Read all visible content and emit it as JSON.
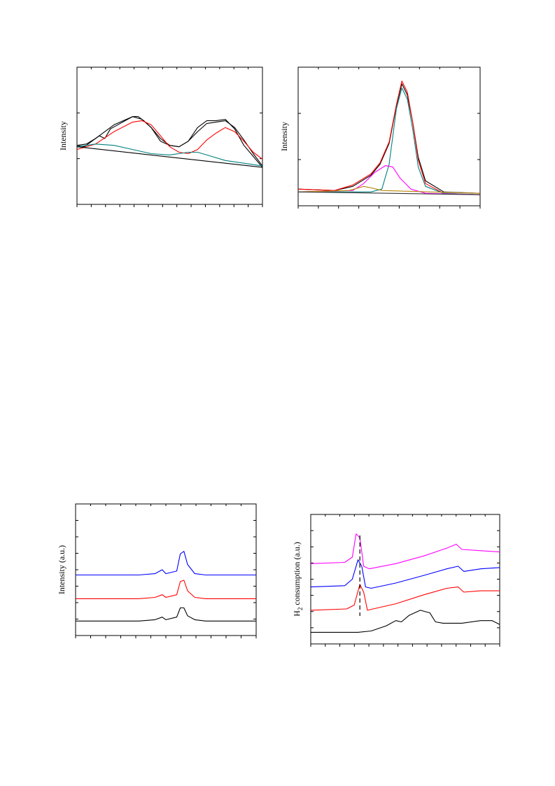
{
  "chart_data": [
    {
      "type": "line",
      "title": "",
      "xlabel": "",
      "ylabel": "Intensity",
      "grid": false,
      "legend": "none",
      "xlim": [
        0,
        100
      ],
      "ylim": [
        0,
        100
      ],
      "series": [
        {
          "color": "#000000",
          "values": [
            [
              0,
              43
            ],
            [
              4,
              42
            ],
            [
              8,
              46
            ],
            [
              12,
              50
            ],
            [
              15,
              48
            ],
            [
              18,
              55
            ],
            [
              22,
              58
            ],
            [
              26,
              61
            ],
            [
              30,
              64
            ],
            [
              33,
              64
            ],
            [
              36,
              61
            ],
            [
              40,
              56
            ],
            [
              45,
              46
            ],
            [
              50,
              43
            ],
            [
              55,
              42
            ],
            [
              60,
              46
            ],
            [
              65,
              56
            ],
            [
              70,
              61
            ],
            [
              75,
              61
            ],
            [
              80,
              62
            ],
            [
              85,
              55
            ],
            [
              90,
              43
            ],
            [
              95,
              35
            ],
            [
              100,
              27
            ]
          ]
        },
        {
          "color": "#000000",
          "values": [
            [
              0,
              43
            ],
            [
              5,
              44
            ],
            [
              10,
              48
            ],
            [
              15,
              53
            ],
            [
              20,
              58
            ],
            [
              25,
              61
            ],
            [
              30,
              64
            ],
            [
              35,
              62
            ],
            [
              40,
              56
            ],
            [
              45,
              48
            ],
            [
              50,
              43
            ],
            [
              55,
              42
            ],
            [
              60,
              46
            ],
            [
              65,
              53
            ],
            [
              70,
              59
            ],
            [
              75,
              60
            ],
            [
              80,
              61
            ],
            [
              85,
              56
            ],
            [
              90,
              47
            ],
            [
              95,
              37
            ],
            [
              100,
              28
            ]
          ]
        },
        {
          "color": "#ff0000",
          "values": [
            [
              0,
              40
            ],
            [
              10,
              44
            ],
            [
              20,
              53
            ],
            [
              30,
              60
            ],
            [
              35,
              61
            ],
            [
              40,
              58
            ],
            [
              45,
              50
            ],
            [
              50,
              42
            ],
            [
              55,
              38
            ],
            [
              60,
              37
            ],
            [
              65,
              40
            ],
            [
              70,
              47
            ],
            [
              75,
              52
            ],
            [
              80,
              56
            ],
            [
              85,
              53
            ],
            [
              90,
              46
            ],
            [
              95,
              38
            ],
            [
              100,
              33
            ]
          ]
        },
        {
          "color": "#008080",
          "values": [
            [
              0,
              42
            ],
            [
              10,
              44
            ],
            [
              20,
              43
            ],
            [
              30,
              40
            ],
            [
              40,
              37
            ],
            [
              50,
              36
            ],
            [
              55,
              37
            ],
            [
              60,
              38
            ],
            [
              65,
              38
            ],
            [
              70,
              36
            ],
            [
              80,
              32
            ],
            [
              90,
              30
            ],
            [
              100,
              28
            ]
          ]
        },
        {
          "color": "#000000",
          "values": [
            [
              0,
              42
            ],
            [
              100,
              27
            ]
          ]
        }
      ]
    },
    {
      "type": "line",
      "title": "",
      "xlabel": "",
      "ylabel": "Intensity",
      "grid": false,
      "legend": "none",
      "xlim": [
        0,
        100
      ],
      "ylim": [
        0,
        100
      ],
      "series": [
        {
          "color": "#000000",
          "values": [
            [
              0,
              12
            ],
            [
              20,
              11
            ],
            [
              30,
              14
            ],
            [
              40,
              22
            ],
            [
              45,
              30
            ],
            [
              50,
              45
            ],
            [
              54,
              72
            ],
            [
              57,
              88
            ],
            [
              60,
              80
            ],
            [
              63,
              60
            ],
            [
              66,
              35
            ],
            [
              70,
              18
            ],
            [
              80,
              10
            ],
            [
              100,
              9
            ]
          ]
        },
        {
          "color": "#ff0000",
          "values": [
            [
              0,
              12
            ],
            [
              20,
              11
            ],
            [
              30,
              15
            ],
            [
              40,
              23
            ],
            [
              45,
              31
            ],
            [
              50,
              46
            ],
            [
              54,
              73
            ],
            [
              57,
              90
            ],
            [
              60,
              82
            ],
            [
              63,
              60
            ],
            [
              66,
              33
            ],
            [
              70,
              16
            ],
            [
              80,
              9
            ],
            [
              100,
              8
            ]
          ]
        },
        {
          "color": "#008080",
          "values": [
            [
              0,
              10
            ],
            [
              40,
              10
            ],
            [
              46,
              12
            ],
            [
              50,
              30
            ],
            [
              54,
              70
            ],
            [
              57,
              85
            ],
            [
              60,
              77
            ],
            [
              63,
              55
            ],
            [
              66,
              28
            ],
            [
              70,
              14
            ],
            [
              80,
              9
            ],
            [
              100,
              8
            ]
          ]
        },
        {
          "color": "#ff00ff",
          "values": [
            [
              0,
              10
            ],
            [
              30,
              11
            ],
            [
              36,
              16
            ],
            [
              42,
              24
            ],
            [
              48,
              29
            ],
            [
              52,
              28
            ],
            [
              56,
              20
            ],
            [
              62,
              12
            ],
            [
              70,
              9
            ],
            [
              100,
              8
            ]
          ]
        },
        {
          "color": "#b8860b",
          "values": [
            [
              0,
              10
            ],
            [
              28,
              11
            ],
            [
              36,
              14
            ],
            [
              40,
              13
            ],
            [
              46,
              11
            ],
            [
              100,
              9
            ]
          ]
        },
        {
          "color": "#333333",
          "values": [
            [
              0,
              10
            ],
            [
              100,
              8
            ]
          ]
        }
      ]
    },
    {
      "type": "line",
      "title": "",
      "xlabel": "",
      "ylabel": "Intensity (a.u.)",
      "grid": false,
      "legend": "none",
      "xlim": [
        0,
        100
      ],
      "ylim": [
        0,
        100
      ],
      "series": [
        {
          "color": "#0000ff",
          "values": [
            [
              0,
              46
            ],
            [
              20,
              46
            ],
            [
              35,
              46
            ],
            [
              44,
              47
            ],
            [
              48,
              50
            ],
            [
              50,
              47
            ],
            [
              56,
              49
            ],
            [
              58,
              62
            ],
            [
              60,
              64
            ],
            [
              62,
              54
            ],
            [
              66,
              47
            ],
            [
              72,
              46
            ],
            [
              100,
              46
            ]
          ]
        },
        {
          "color": "#ff0000",
          "values": [
            [
              0,
              28
            ],
            [
              20,
              28
            ],
            [
              35,
              28
            ],
            [
              44,
              29
            ],
            [
              48,
              31
            ],
            [
              50,
              29
            ],
            [
              56,
              31
            ],
            [
              58,
              41
            ],
            [
              60,
              42
            ],
            [
              62,
              34
            ],
            [
              66,
              29
            ],
            [
              72,
              28
            ],
            [
              100,
              28
            ]
          ]
        },
        {
          "color": "#000000",
          "values": [
            [
              0,
              11
            ],
            [
              20,
              11
            ],
            [
              35,
              11
            ],
            [
              44,
              12
            ],
            [
              48,
              14
            ],
            [
              50,
              12
            ],
            [
              56,
              14
            ],
            [
              58,
              21
            ],
            [
              60,
              21
            ],
            [
              62,
              15
            ],
            [
              66,
              12
            ],
            [
              72,
              11
            ],
            [
              100,
              11
            ]
          ]
        }
      ]
    },
    {
      "type": "line",
      "title": "",
      "xlabel": "",
      "ylabel": "H2 consumption (a.u.)",
      "grid": false,
      "legend": "none",
      "xlim": [
        0,
        100
      ],
      "ylim": [
        0,
        100
      ],
      "series": [
        {
          "color": "#ff00ff",
          "values": [
            [
              0,
              62
            ],
            [
              18,
              63
            ],
            [
              22,
              67
            ],
            [
              24,
              85
            ],
            [
              26,
              82
            ],
            [
              28,
              60
            ],
            [
              31,
              58
            ],
            [
              45,
              62
            ],
            [
              60,
              68
            ],
            [
              72,
              74
            ],
            [
              77,
              77
            ],
            [
              80,
              73
            ],
            [
              90,
              72
            ],
            [
              100,
              71
            ]
          ]
        },
        {
          "color": "#0000ff",
          "values": [
            [
              0,
              44
            ],
            [
              18,
              45
            ],
            [
              22,
              50
            ],
            [
              25,
              65
            ],
            [
              27,
              60
            ],
            [
              29,
              44
            ],
            [
              32,
              43
            ],
            [
              45,
              47
            ],
            [
              60,
              53
            ],
            [
              72,
              58
            ],
            [
              78,
              60
            ],
            [
              81,
              56
            ],
            [
              90,
              58
            ],
            [
              100,
              59
            ]
          ]
        },
        {
          "color": "#ff0000",
          "values": [
            [
              0,
              26
            ],
            [
              19,
              27
            ],
            [
              23,
              30
            ],
            [
              26,
              46
            ],
            [
              28,
              40
            ],
            [
              30,
              26
            ],
            [
              33,
              27
            ],
            [
              45,
              31
            ],
            [
              60,
              38
            ],
            [
              72,
              43
            ],
            [
              78,
              44
            ],
            [
              81,
              40
            ],
            [
              90,
              41
            ],
            [
              100,
              41
            ]
          ]
        },
        {
          "color": "#000000",
          "values": [
            [
              0,
              9
            ],
            [
              25,
              9
            ],
            [
              32,
              10
            ],
            [
              40,
              14
            ],
            [
              45,
              18
            ],
            [
              48,
              17
            ],
            [
              52,
              22
            ],
            [
              58,
              26
            ],
            [
              63,
              24
            ],
            [
              66,
              17
            ],
            [
              70,
              16
            ],
            [
              80,
              16
            ],
            [
              90,
              18
            ],
            [
              96,
              18
            ],
            [
              100,
              15
            ]
          ]
        }
      ],
      "markers": [
        {
          "style": "dashed",
          "x": 26
        }
      ]
    }
  ]
}
